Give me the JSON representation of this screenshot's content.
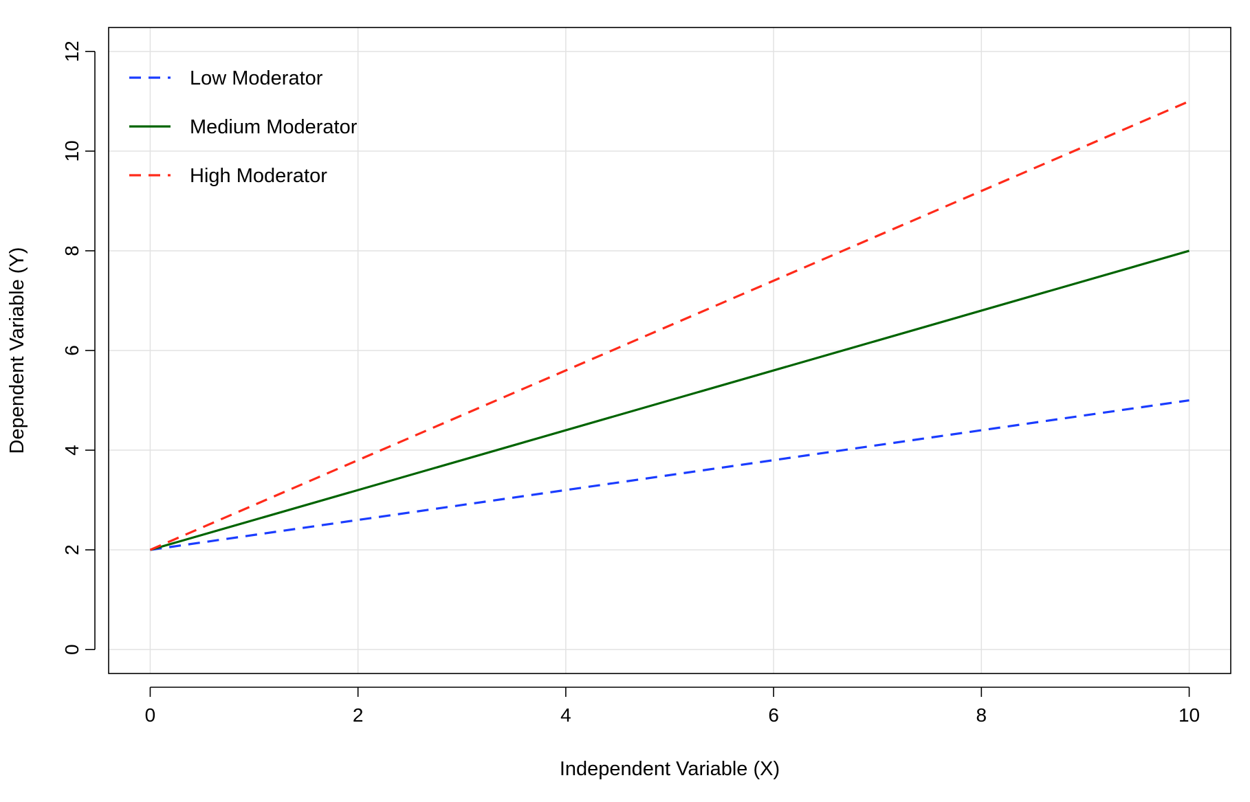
{
  "chart_data": {
    "type": "line",
    "title": "",
    "xlabel": "Independent Variable (X)",
    "ylabel": "Dependent Variable (Y)",
    "xlim": [
      -0.4,
      10.4
    ],
    "ylim": [
      -0.48,
      12.48
    ],
    "x_ticks": [
      0,
      2,
      4,
      6,
      8,
      10
    ],
    "y_ticks": [
      0,
      2,
      4,
      6,
      8,
      10,
      12
    ],
    "grid": true,
    "legend_position": "top-left",
    "x": [
      0,
      10
    ],
    "series": [
      {
        "name": "Low Moderator",
        "values": [
          2,
          5
        ],
        "color": "#1a3cff",
        "line_style": "dashed"
      },
      {
        "name": "Medium Moderator",
        "values": [
          2,
          8
        ],
        "color": "#006400",
        "line_style": "solid"
      },
      {
        "name": "High Moderator",
        "values": [
          2,
          11
        ],
        "color": "#ff2a1a",
        "line_style": "dashed"
      }
    ]
  }
}
